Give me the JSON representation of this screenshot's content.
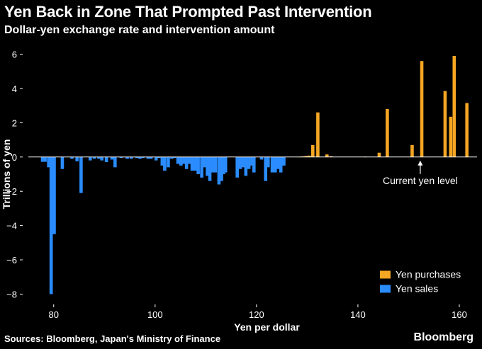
{
  "header": {
    "title": "Yen Back in Zone That Prompted Past Intervention",
    "subtitle": "Dollar-yen exchange rate and intervention amount"
  },
  "footer": {
    "source": "Sources: Bloomberg, Japan's Ministry of Finance",
    "brand": "Bloomberg"
  },
  "chart_data": {
    "type": "bar",
    "title": "Yen Back in Zone That Prompted Past Intervention",
    "subtitle": "Dollar-yen exchange rate and intervention amount",
    "xlabel": "Yen per dollar",
    "ylabel": "Trillions of yen",
    "xlim": [
      75,
      163.5
    ],
    "ylim": [
      -8.6,
      6.6
    ],
    "x_ticks": [
      80,
      100,
      120,
      140,
      160
    ],
    "x_tick_labels": [
      "80",
      "100",
      "120",
      "140",
      "160"
    ],
    "y_ticks": [
      6,
      4,
      2,
      0,
      -2,
      -4,
      -6,
      -8
    ],
    "y_tick_labels": [
      "6",
      "4",
      "2",
      "0",
      "−2",
      "−4",
      "−6",
      "−8"
    ],
    "legend": {
      "position": "bottom-right",
      "entries": [
        {
          "label": "Yen purchases",
          "color": "#f5a623"
        },
        {
          "label": "Yen sales",
          "color": "#2a8cff"
        }
      ]
    },
    "annotation": {
      "text": "Current yen level",
      "x": 152.3
    },
    "colors": {
      "purchases": "#f5a623",
      "sales": "#2a8cff"
    },
    "series": [
      {
        "name": "Yen sales",
        "x": [
          77.8,
          78.3,
          79,
          79.5,
          80.1,
          81.7,
          83.6,
          84.6,
          85.4,
          87.2,
          88,
          88.9,
          89.5,
          90.4,
          91.5,
          92.1,
          93.3,
          94.5,
          95.3,
          96.4,
          97,
          97.6,
          98.6,
          99.2,
          100.2,
          100.8,
          101.4,
          101.9,
          102.6,
          103.3,
          103.8,
          104.5,
          105.1,
          105.6,
          106.2,
          106.8,
          107.3,
          107.9,
          108.5,
          109.2,
          109.7,
          110.3,
          110.8,
          111.4,
          111.9,
          112.6,
          113.1,
          113.5,
          113.9,
          116.2,
          116.8,
          117.4,
          117.9,
          118.5,
          119.1,
          119.5,
          121,
          121.8,
          122.3,
          123.1,
          123.7,
          124.3,
          124.8,
          125.4
        ],
        "values": [
          -0.28,
          -0.28,
          -0.6,
          -8.0,
          -4.5,
          -0.7,
          -0.1,
          -0.25,
          -2.1,
          -0.2,
          -0.1,
          -0.1,
          -0.2,
          -0.3,
          -0.15,
          -0.6,
          -0.05,
          -0.1,
          -0.1,
          -0.05,
          -0.1,
          -0.05,
          -0.1,
          -0.1,
          -0.2,
          -0.05,
          -0.5,
          -0.8,
          -0.6,
          -0.1,
          -0.05,
          -0.4,
          -0.5,
          -0.4,
          -0.7,
          -0.4,
          -0.8,
          -0.8,
          -1.0,
          -1.2,
          -0.6,
          -1.1,
          -1.4,
          -0.9,
          -0.9,
          -1.6,
          -1.4,
          -1.0,
          -0.9,
          -1.2,
          -0.7,
          -0.6,
          -1.1,
          -0.7,
          -0.5,
          -0.9,
          -0.15,
          -1.4,
          -0.6,
          -0.9,
          -0.9,
          -0.7,
          -0.9,
          -0.5
        ]
      },
      {
        "name": "Yen purchases",
        "x": [
          128.6,
          129.2,
          129.8,
          130.4,
          131.1,
          132.1,
          133.9,
          134.7,
          141.5,
          144.2,
          145.8,
          150.7,
          152.6,
          157.2,
          158.3,
          159,
          161.5
        ],
        "values": [
          0.02,
          0.04,
          0.06,
          0.08,
          0.7,
          2.6,
          0.15,
          0.05,
          0.02,
          0.25,
          2.8,
          0.7,
          5.6,
          3.85,
          2.35,
          5.9,
          3.15
        ]
      }
    ]
  }
}
